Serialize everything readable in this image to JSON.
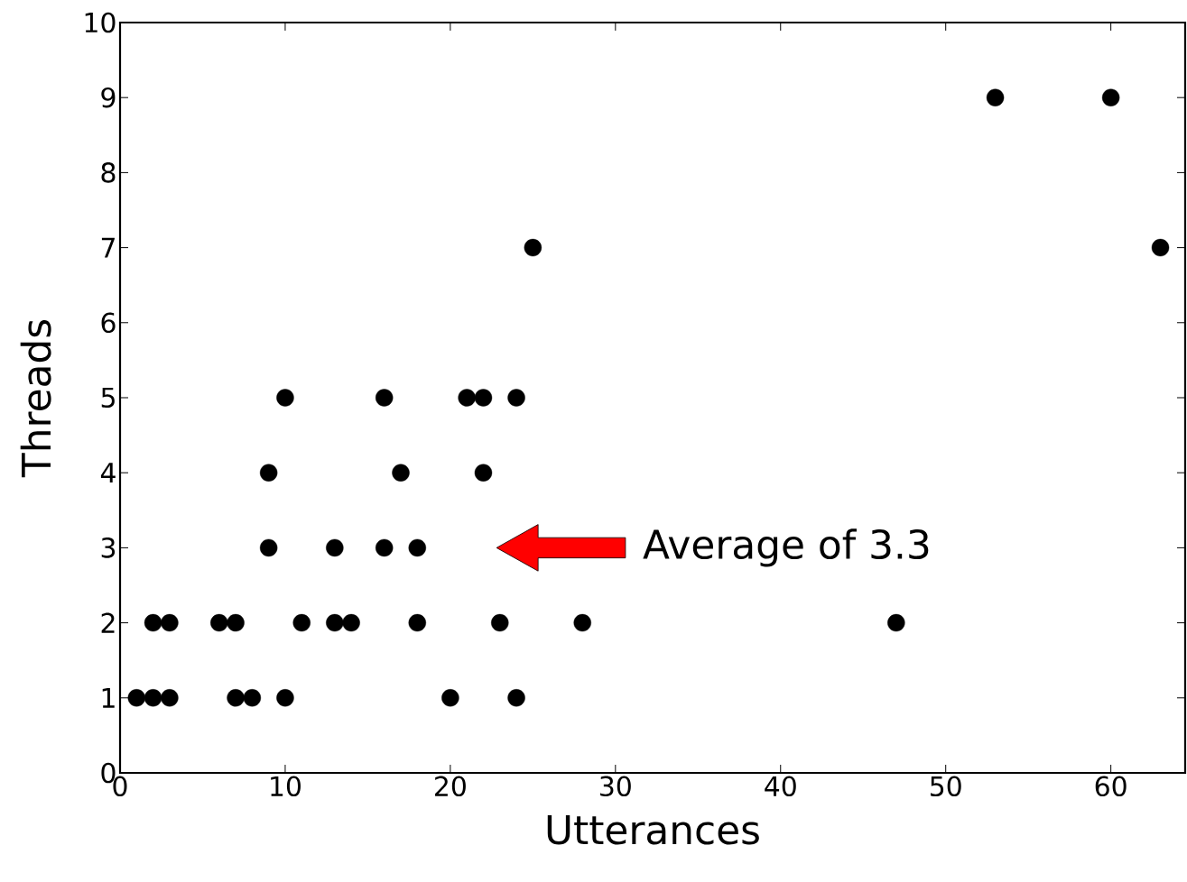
{
  "chart_data": {
    "type": "scatter",
    "xlabel": "Utterances",
    "ylabel": "Threads",
    "x": [
      1,
      2,
      3,
      7,
      8,
      10,
      20,
      24,
      2,
      3,
      6,
      7,
      11,
      13,
      14,
      18,
      23,
      28,
      47,
      9,
      13,
      16,
      18,
      9,
      17,
      22,
      10,
      16,
      21,
      22,
      24,
      25,
      63,
      53,
      60
    ],
    "values": [
      1,
      1,
      1,
      1,
      1,
      1,
      1,
      1,
      2,
      2,
      2,
      2,
      2,
      2,
      2,
      2,
      2,
      2,
      2,
      3,
      3,
      3,
      3,
      4,
      4,
      4,
      5,
      5,
      5,
      5,
      5,
      7,
      7,
      9,
      9
    ],
    "color": "#000000",
    "xlim": [
      0,
      64.5
    ],
    "ylim": [
      0,
      10
    ],
    "xticks": [
      0,
      10,
      20,
      30,
      40,
      50,
      60
    ],
    "yticks": [
      0,
      1,
      2,
      3,
      4,
      5,
      6,
      7,
      8,
      9,
      10
    ],
    "annotations": [
      "Average of 3.3"
    ]
  }
}
